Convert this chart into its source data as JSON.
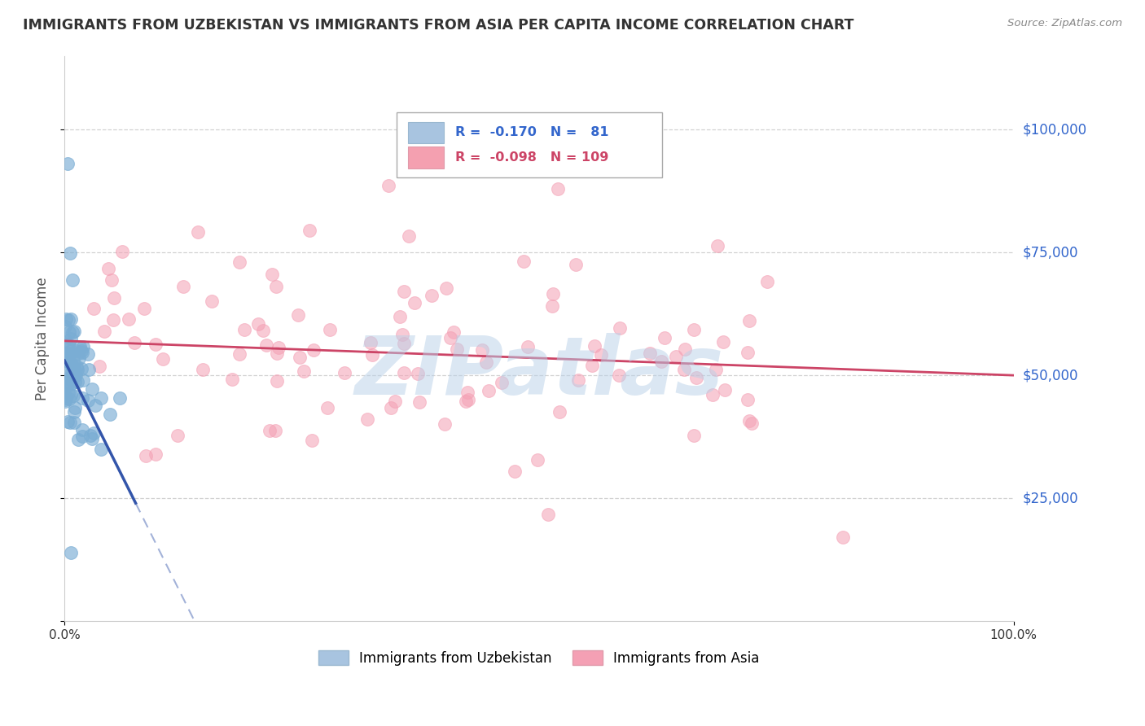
{
  "title": "IMMIGRANTS FROM UZBEKISTAN VS IMMIGRANTS FROM ASIA PER CAPITA INCOME CORRELATION CHART",
  "source_text": "Source: ZipAtlas.com",
  "ylabel": "Per Capita Income",
  "xlim": [
    0.0,
    1.0
  ],
  "ylim": [
    0,
    115000
  ],
  "ytick_color": "#3366cc",
  "scatter_blue_color": "#7aadd4",
  "scatter_pink_color": "#f4a0b4",
  "trend_blue_color": "#3355aa",
  "trend_pink_color": "#cc4466",
  "grid_color": "#cccccc",
  "legend_blue_fill": "#a8c4e0",
  "legend_pink_fill": "#f4a0b0",
  "legend_text_blue": "#3366cc",
  "legend_text_pink": "#cc4466",
  "legend_r_blue": "-0.170",
  "legend_n_blue": "81",
  "legend_r_pink": "-0.098",
  "legend_n_pink": "109",
  "bottom_legend_label1": "Immigrants from Uzbekistan",
  "bottom_legend_label2": "Immigrants from Asia",
  "bottom_legend_color1": "#a8c4e0",
  "bottom_legend_color2": "#f4a0b4",
  "watermark": "ZIPatlas",
  "watermark_color": "#b8d0e8",
  "title_color": "#333333",
  "axis_label_color": "#555555"
}
